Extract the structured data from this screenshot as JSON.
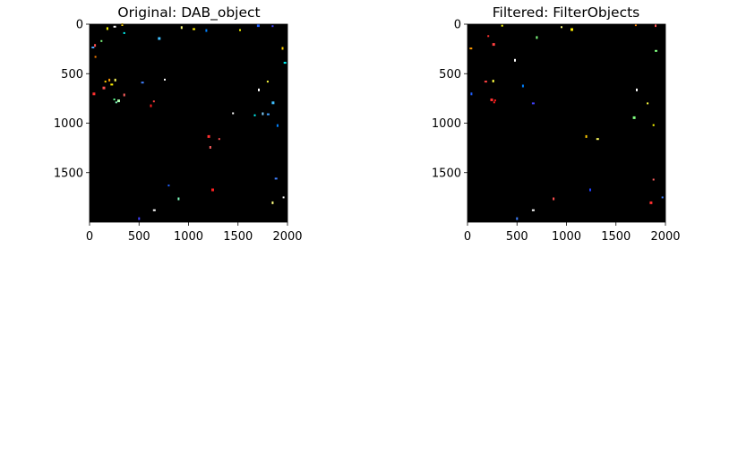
{
  "figure": {
    "background": "#ffffff"
  },
  "chart_data": [
    {
      "type": "heatmap",
      "title": "Original: DAB_object",
      "background_color": "#000000",
      "x_ticks": [
        0,
        500,
        1000,
        1500,
        2000
      ],
      "y_ticks": [
        0,
        500,
        1000,
        1500
      ],
      "xlim": [
        0,
        2000
      ],
      "ylim": [
        2000,
        0
      ],
      "objects": [
        {
          "x": 30,
          "y": 235,
          "color": "#4da6ff"
        },
        {
          "x": 55,
          "y": 210,
          "color": "#ff4d4d"
        },
        {
          "x": 60,
          "y": 330,
          "color": "#ff8000"
        },
        {
          "x": 40,
          "y": 700,
          "color": "#ff3030"
        },
        {
          "x": 120,
          "y": 170,
          "color": "#80ff80"
        },
        {
          "x": 180,
          "y": 40,
          "color": "#ffff00"
        },
        {
          "x": 250,
          "y": 25,
          "color": "#ffffff"
        },
        {
          "x": 330,
          "y": 0,
          "color": "#ffd000"
        },
        {
          "x": 350,
          "y": 90,
          "color": "#00ffff"
        },
        {
          "x": 140,
          "y": 640,
          "color": "#ff5050"
        },
        {
          "x": 160,
          "y": 580,
          "color": "#ffcc00"
        },
        {
          "x": 200,
          "y": 560,
          "color": "#ff9900"
        },
        {
          "x": 220,
          "y": 610,
          "color": "#ffee00"
        },
        {
          "x": 260,
          "y": 560,
          "color": "#ffff60"
        },
        {
          "x": 270,
          "y": 790,
          "color": "#80ffc0"
        },
        {
          "x": 290,
          "y": 770,
          "color": "#b0ffb0"
        },
        {
          "x": 250,
          "y": 760,
          "color": "#60ff90"
        },
        {
          "x": 350,
          "y": 710,
          "color": "#ff6060"
        },
        {
          "x": 530,
          "y": 590,
          "color": "#4080ff"
        },
        {
          "x": 620,
          "y": 820,
          "color": "#ff2020"
        },
        {
          "x": 650,
          "y": 780,
          "color": "#ff4040"
        },
        {
          "x": 700,
          "y": 140,
          "color": "#40c0ff"
        },
        {
          "x": 760,
          "y": 560,
          "color": "#ffffff"
        },
        {
          "x": 930,
          "y": 30,
          "color": "#ffff80"
        },
        {
          "x": 1050,
          "y": 50,
          "color": "#ffee00"
        },
        {
          "x": 1180,
          "y": 60,
          "color": "#0080ff"
        },
        {
          "x": 1520,
          "y": 60,
          "color": "#ffff00"
        },
        {
          "x": 1700,
          "y": 10,
          "color": "#2060ff"
        },
        {
          "x": 1850,
          "y": 20,
          "color": "#4040ff"
        },
        {
          "x": 1950,
          "y": 240,
          "color": "#ffd000"
        },
        {
          "x": 1970,
          "y": 390,
          "color": "#00ffff"
        },
        {
          "x": 1710,
          "y": 660,
          "color": "#ffffff"
        },
        {
          "x": 1800,
          "y": 580,
          "color": "#ffff40"
        },
        {
          "x": 1850,
          "y": 790,
          "color": "#40c0ff"
        },
        {
          "x": 1670,
          "y": 920,
          "color": "#00ffff"
        },
        {
          "x": 1750,
          "y": 900,
          "color": "#80d0ff"
        },
        {
          "x": 1800,
          "y": 910,
          "color": "#40a0ff"
        },
        {
          "x": 1900,
          "y": 1020,
          "color": "#0080ff"
        },
        {
          "x": 1450,
          "y": 900,
          "color": "#ffffff"
        },
        {
          "x": 1200,
          "y": 1130,
          "color": "#ff3030"
        },
        {
          "x": 1310,
          "y": 1160,
          "color": "#ff5050"
        },
        {
          "x": 1220,
          "y": 1240,
          "color": "#ff6060"
        },
        {
          "x": 1880,
          "y": 1560,
          "color": "#4080ff"
        },
        {
          "x": 1850,
          "y": 1800,
          "color": "#ffff80"
        },
        {
          "x": 1960,
          "y": 1750,
          "color": "#ffffff"
        },
        {
          "x": 1240,
          "y": 1670,
          "color": "#ff2020"
        },
        {
          "x": 800,
          "y": 1630,
          "color": "#2060ff"
        },
        {
          "x": 900,
          "y": 1760,
          "color": "#80ffc0"
        },
        {
          "x": 650,
          "y": 1880,
          "color": "#ffffff"
        },
        {
          "x": 500,
          "y": 1960,
          "color": "#4040ff"
        }
      ]
    },
    {
      "type": "heatmap",
      "title": "Filtered: FilterObjects",
      "background_color": "#000000",
      "x_ticks": [
        0,
        500,
        1000,
        1500,
        2000
      ],
      "y_ticks": [
        0,
        500,
        1000,
        1500
      ],
      "xlim": [
        0,
        2000
      ],
      "ylim": [
        2000,
        0
      ],
      "objects": [
        {
          "x": 30,
          "y": 245,
          "color": "#ff9900"
        },
        {
          "x": 40,
          "y": 700,
          "color": "#2060ff"
        },
        {
          "x": 210,
          "y": 120,
          "color": "#ff3030"
        },
        {
          "x": 260,
          "y": 200,
          "color": "#ff4040"
        },
        {
          "x": 350,
          "y": 15,
          "color": "#ffff00"
        },
        {
          "x": 480,
          "y": 360,
          "color": "#ffffff"
        },
        {
          "x": 180,
          "y": 580,
          "color": "#ff4040"
        },
        {
          "x": 260,
          "y": 570,
          "color": "#ffff40"
        },
        {
          "x": 270,
          "y": 790,
          "color": "#ff2020"
        },
        {
          "x": 240,
          "y": 760,
          "color": "#ff3030"
        },
        {
          "x": 280,
          "y": 770,
          "color": "#ff1a1a"
        },
        {
          "x": 560,
          "y": 620,
          "color": "#0080ff"
        },
        {
          "x": 660,
          "y": 800,
          "color": "#4040ff"
        },
        {
          "x": 700,
          "y": 130,
          "color": "#80ff80"
        },
        {
          "x": 950,
          "y": 30,
          "color": "#ffff80"
        },
        {
          "x": 1050,
          "y": 50,
          "color": "#ffee00"
        },
        {
          "x": 1700,
          "y": 10,
          "color": "#ff8000"
        },
        {
          "x": 1900,
          "y": 10,
          "color": "#ff5050"
        },
        {
          "x": 1900,
          "y": 270,
          "color": "#80ff80"
        },
        {
          "x": 1710,
          "y": 660,
          "color": "#ffffff"
        },
        {
          "x": 1820,
          "y": 800,
          "color": "#ffff40"
        },
        {
          "x": 1680,
          "y": 940,
          "color": "#80ff80"
        },
        {
          "x": 1880,
          "y": 1020,
          "color": "#ffff00"
        },
        {
          "x": 1200,
          "y": 1130,
          "color": "#ffcc00"
        },
        {
          "x": 1310,
          "y": 1160,
          "color": "#ffff60"
        },
        {
          "x": 1240,
          "y": 1670,
          "color": "#2040ff"
        },
        {
          "x": 1880,
          "y": 1570,
          "color": "#ff6060"
        },
        {
          "x": 1850,
          "y": 1800,
          "color": "#ff3030"
        },
        {
          "x": 1970,
          "y": 1750,
          "color": "#4080ff"
        },
        {
          "x": 870,
          "y": 1760,
          "color": "#ff5050"
        },
        {
          "x": 660,
          "y": 1880,
          "color": "#ffffff"
        },
        {
          "x": 500,
          "y": 1960,
          "color": "#4080ff"
        }
      ]
    }
  ]
}
